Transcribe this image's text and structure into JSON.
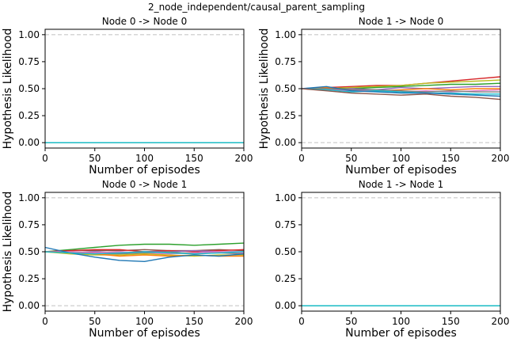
{
  "figure_title": "2_node_independent/causal_parent_sampling",
  "chart_data": [
    {
      "type": "line",
      "title": "Node 0 -> Node 0",
      "xlabel": "Number of episodes",
      "ylabel": "Hypothesis Likelihood",
      "xlim": [
        0,
        200
      ],
      "ylim": [
        -0.05,
        1.05
      ],
      "xticks": [
        "0",
        "50",
        "100",
        "150",
        "200"
      ],
      "yticks": [
        "0.00",
        "0.25",
        "0.50",
        "0.75",
        "1.00"
      ],
      "reference_lines": [
        0,
        1
      ],
      "x": [
        0,
        25,
        50,
        75,
        100,
        125,
        150,
        175,
        200
      ],
      "series": [
        {
          "color": "#1f77b4",
          "values": [
            0,
            0,
            0,
            0,
            0,
            0,
            0,
            0,
            0
          ]
        },
        {
          "color": "#2ca02c",
          "values": [
            0,
            0,
            0,
            0,
            0,
            0,
            0,
            0,
            0
          ]
        },
        {
          "color": "#17becf",
          "values": [
            0,
            0,
            0,
            0,
            0,
            0,
            0,
            0,
            0
          ]
        }
      ]
    },
    {
      "type": "line",
      "title": "Node 1 -> Node 0",
      "xlabel": "Number of episodes",
      "ylabel": "Hypothesis Likelihood",
      "xlim": [
        0,
        200
      ],
      "ylim": [
        -0.05,
        1.05
      ],
      "xticks": [
        "0",
        "50",
        "100",
        "150",
        "200"
      ],
      "yticks": [
        "0.00",
        "0.25",
        "0.50",
        "0.75",
        "1.00"
      ],
      "reference_lines": [
        0,
        1
      ],
      "x": [
        0,
        25,
        50,
        75,
        100,
        125,
        150,
        175,
        200
      ],
      "series": [
        {
          "color": "#d62728",
          "values": [
            0.5,
            0.51,
            0.52,
            0.53,
            0.53,
            0.55,
            0.57,
            0.59,
            0.61
          ]
        },
        {
          "color": "#bcbd22",
          "values": [
            0.5,
            0.5,
            0.51,
            0.52,
            0.53,
            0.55,
            0.56,
            0.57,
            0.58
          ]
        },
        {
          "color": "#2ca02c",
          "values": [
            0.5,
            0.5,
            0.5,
            0.51,
            0.52,
            0.53,
            0.54,
            0.54,
            0.55
          ]
        },
        {
          "color": "#9467bd",
          "values": [
            0.5,
            0.49,
            0.5,
            0.49,
            0.51,
            0.5,
            0.51,
            0.52,
            0.52
          ]
        },
        {
          "color": "#ff7f0e",
          "values": [
            0.5,
            0.51,
            0.49,
            0.48,
            0.49,
            0.5,
            0.49,
            0.5,
            0.5
          ]
        },
        {
          "color": "#e377c2",
          "values": [
            0.5,
            0.49,
            0.48,
            0.48,
            0.47,
            0.48,
            0.47,
            0.48,
            0.49
          ]
        },
        {
          "color": "#7f7f7f",
          "values": [
            0.5,
            0.5,
            0.49,
            0.49,
            0.48,
            0.47,
            0.48,
            0.47,
            0.47
          ]
        },
        {
          "color": "#17becf",
          "values": [
            0.5,
            0.49,
            0.47,
            0.48,
            0.47,
            0.46,
            0.46,
            0.45,
            0.45
          ]
        },
        {
          "color": "#1f77b4",
          "values": [
            0.5,
            0.52,
            0.48,
            0.47,
            0.46,
            0.46,
            0.45,
            0.44,
            0.43
          ]
        },
        {
          "color": "#8c564b",
          "values": [
            0.5,
            0.48,
            0.46,
            0.45,
            0.44,
            0.45,
            0.43,
            0.42,
            0.4
          ]
        }
      ]
    },
    {
      "type": "line",
      "title": "Node 0 -> Node 1",
      "xlabel": "Number of episodes",
      "ylabel": "Hypothesis Likelihood",
      "xlim": [
        0,
        200
      ],
      "ylim": [
        -0.05,
        1.05
      ],
      "xticks": [
        "0",
        "50",
        "100",
        "150",
        "200"
      ],
      "yticks": [
        "0.00",
        "0.25",
        "0.50",
        "0.75",
        "1.00"
      ],
      "reference_lines": [
        0,
        1
      ],
      "x": [
        0,
        25,
        50,
        75,
        100,
        125,
        150,
        175,
        200
      ],
      "series": [
        {
          "color": "#2ca02c",
          "values": [
            0.5,
            0.52,
            0.54,
            0.56,
            0.57,
            0.57,
            0.56,
            0.57,
            0.58
          ]
        },
        {
          "color": "#8c564b",
          "values": [
            0.5,
            0.51,
            0.51,
            0.51,
            0.52,
            0.51,
            0.51,
            0.52,
            0.51
          ]
        },
        {
          "color": "#d62728",
          "values": [
            0.5,
            0.51,
            0.52,
            0.52,
            0.5,
            0.51,
            0.5,
            0.51,
            0.52
          ]
        },
        {
          "color": "#9467bd",
          "values": [
            0.5,
            0.49,
            0.5,
            0.49,
            0.5,
            0.5,
            0.51,
            0.5,
            0.5
          ]
        },
        {
          "color": "#e377c2",
          "values": [
            0.5,
            0.5,
            0.49,
            0.5,
            0.49,
            0.48,
            0.49,
            0.5,
            0.49
          ]
        },
        {
          "color": "#7f7f7f",
          "values": [
            0.5,
            0.49,
            0.48,
            0.48,
            0.49,
            0.5,
            0.48,
            0.49,
            0.48
          ]
        },
        {
          "color": "#bcbd22",
          "values": [
            0.5,
            0.48,
            0.47,
            0.47,
            0.48,
            0.47,
            0.46,
            0.47,
            0.47
          ]
        },
        {
          "color": "#ff7f0e",
          "values": [
            0.5,
            0.49,
            0.48,
            0.46,
            0.47,
            0.46,
            0.47,
            0.46,
            0.46
          ]
        },
        {
          "color": "#1f77b4",
          "values": [
            0.54,
            0.49,
            0.45,
            0.42,
            0.41,
            0.45,
            0.47,
            0.46,
            0.48
          ]
        },
        {
          "color": "#17becf",
          "values": [
            0.5,
            0.49,
            0.48,
            0.49,
            0.5,
            0.49,
            0.48,
            0.49,
            0.5
          ]
        }
      ]
    },
    {
      "type": "line",
      "title": "Node 1 -> Node 1",
      "xlabel": "Number of episodes",
      "ylabel": "",
      "xlim": [
        0,
        200
      ],
      "ylim": [
        -0.05,
        1.05
      ],
      "xticks": [
        "0",
        "50",
        "100",
        "150",
        "200"
      ],
      "yticks": [
        "0.00",
        "0.25",
        "0.50",
        "0.75",
        "1.00"
      ],
      "reference_lines": [
        0,
        1
      ],
      "x": [
        0,
        25,
        50,
        75,
        100,
        125,
        150,
        175,
        200
      ],
      "series": [
        {
          "color": "#1f77b4",
          "values": [
            0,
            0,
            0,
            0,
            0,
            0,
            0,
            0,
            0
          ]
        },
        {
          "color": "#2ca02c",
          "values": [
            0,
            0,
            0,
            0,
            0,
            0,
            0,
            0,
            0
          ]
        },
        {
          "color": "#17becf",
          "values": [
            0,
            0,
            0,
            0,
            0,
            0,
            0,
            0,
            0
          ]
        }
      ]
    }
  ]
}
